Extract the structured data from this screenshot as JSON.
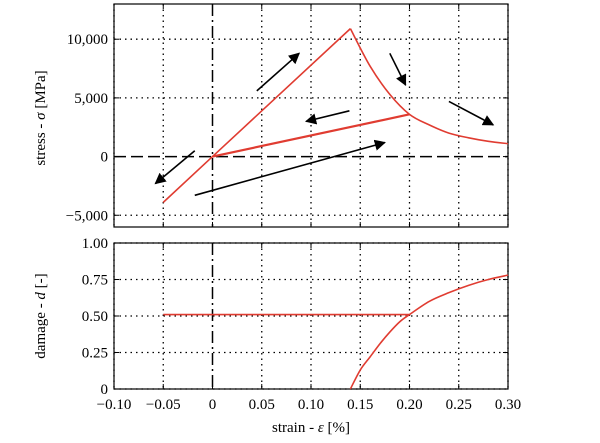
{
  "chart_data": [
    {
      "type": "line",
      "ylabel_prefix": "stress - ",
      "ylabel_symbol": "σ",
      "ylabel_unit": " [MPa]",
      "xlim": [
        -0.1,
        0.3
      ],
      "ylim": [
        -6000,
        13000
      ],
      "yticks": [
        -5000,
        0,
        5000,
        10000
      ],
      "ytick_labels": [
        "−5,000",
        "0",
        "5,000",
        "10,000"
      ],
      "grid": true,
      "series": [
        {
          "values_x": [
            -0.05,
            0,
            0.14
          ],
          "values_y": [
            -3900,
            0,
            10900
          ]
        },
        {
          "values_x": [
            0,
            0.2
          ],
          "values_y": [
            0,
            3600
          ]
        },
        {
          "curve": "softening",
          "values_x": [
            0.14,
            0.16,
            0.18,
            0.2,
            0.22,
            0.24,
            0.26,
            0.28,
            0.3
          ],
          "values_y": [
            10900,
            7700,
            5300,
            3600,
            2700,
            2000,
            1600,
            1300,
            1100
          ]
        }
      ],
      "arrows": [
        {
          "from": [
            0.045,
            5600
          ],
          "to": [
            0.088,
            8800
          ]
        },
        {
          "from": [
            0.18,
            8800
          ],
          "to": [
            0.196,
            6100
          ]
        },
        {
          "from": [
            0.24,
            4700
          ],
          "to": [
            0.285,
            2700
          ]
        },
        {
          "from": [
            0.139,
            3900
          ],
          "to": [
            0.095,
            3000
          ]
        },
        {
          "from": [
            -0.018,
            500
          ],
          "to": [
            -0.058,
            -2300
          ]
        },
        {
          "from": [
            -0.018,
            -3300
          ],
          "to": [
            0.175,
            1200
          ]
        }
      ]
    },
    {
      "type": "line",
      "xlabel_prefix": "strain - ",
      "xlabel_symbol": "ε",
      "xlabel_unit": " [%]",
      "ylabel_prefix": "damage - ",
      "ylabel_symbol": "d",
      "ylabel_unit": " [-]",
      "xlim": [
        -0.1,
        0.3
      ],
      "ylim": [
        0,
        1
      ],
      "xticks": [
        -0.1,
        -0.05,
        0,
        0.05,
        0.1,
        0.15,
        0.2,
        0.25,
        0.3
      ],
      "xtick_labels": [
        "−0.10",
        "−0.05",
        "0",
        "0.05",
        "0.10",
        "0.15",
        "0.20",
        "0.25",
        "0.30"
      ],
      "yticks": [
        0,
        0.25,
        0.5,
        0.75,
        1
      ],
      "ytick_labels": [
        "0",
        "0.25",
        "0.50",
        "0.75",
        "1.00"
      ],
      "grid": true,
      "series": [
        {
          "values_x": [
            -0.05,
            0.2
          ],
          "values_y": [
            0.51,
            0.51
          ]
        },
        {
          "curve": "damage",
          "values_x": [
            0.14,
            0.15,
            0.16,
            0.17,
            0.18,
            0.19,
            0.2,
            0.22,
            0.24,
            0.26,
            0.28,
            0.3
          ],
          "values_y": [
            0,
            0.13,
            0.22,
            0.31,
            0.39,
            0.46,
            0.51,
            0.6,
            0.66,
            0.71,
            0.75,
            0.78
          ]
        }
      ]
    }
  ],
  "colors": {
    "curve": "#e03c31",
    "axis": "#000000",
    "arrow": "#000000"
  }
}
